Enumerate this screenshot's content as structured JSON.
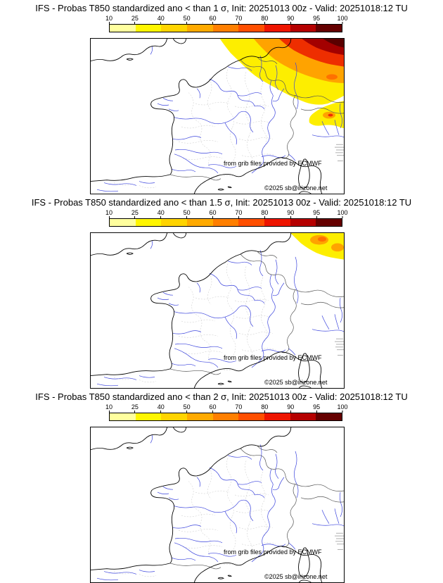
{
  "panels": [
    {
      "title": "IFS - Probas T850  standardized ano < than 1 σ, Init: 20251013 00z - Valid: 20251018:12 TU",
      "overlay": "sigma1"
    },
    {
      "title": "IFS - Probas T850  standardized ano < than 1.5 σ, Init: 20251013 00z - Valid: 20251018:12 TU",
      "overlay": "sigma15"
    },
    {
      "title": "IFS - Probas T850  standardized ano < than 2 σ, Init: 20251013 00z - Valid: 20251018:12 TU",
      "overlay": "none"
    }
  ],
  "colorbar": {
    "ticks": [
      "10",
      "25",
      "40",
      "50",
      "60",
      "70",
      "80",
      "90",
      "95",
      "100"
    ],
    "segment_colors": [
      "#ffff9e",
      "#fff600",
      "#ffd400",
      "#ffaa00",
      "#ff7f00",
      "#ff4f00",
      "#ee1500",
      "#b50000",
      "#650000"
    ]
  },
  "map_colors": {
    "yellow": "#fdee00",
    "orange": "#ffa300",
    "orange2": "#ff7000",
    "red": "#ee2e00",
    "darkred": "#a30000",
    "darkest": "#5a0000",
    "river": "#3b44dd",
    "coast": "#000000",
    "border": "#555555",
    "admin": "#c4c4c4",
    "hatch": "#999999"
  },
  "map": {
    "credit_ecmwf": "from grib files provided by ECMWF",
    "credit_copyright": "©2025 sb@irizone.net"
  }
}
